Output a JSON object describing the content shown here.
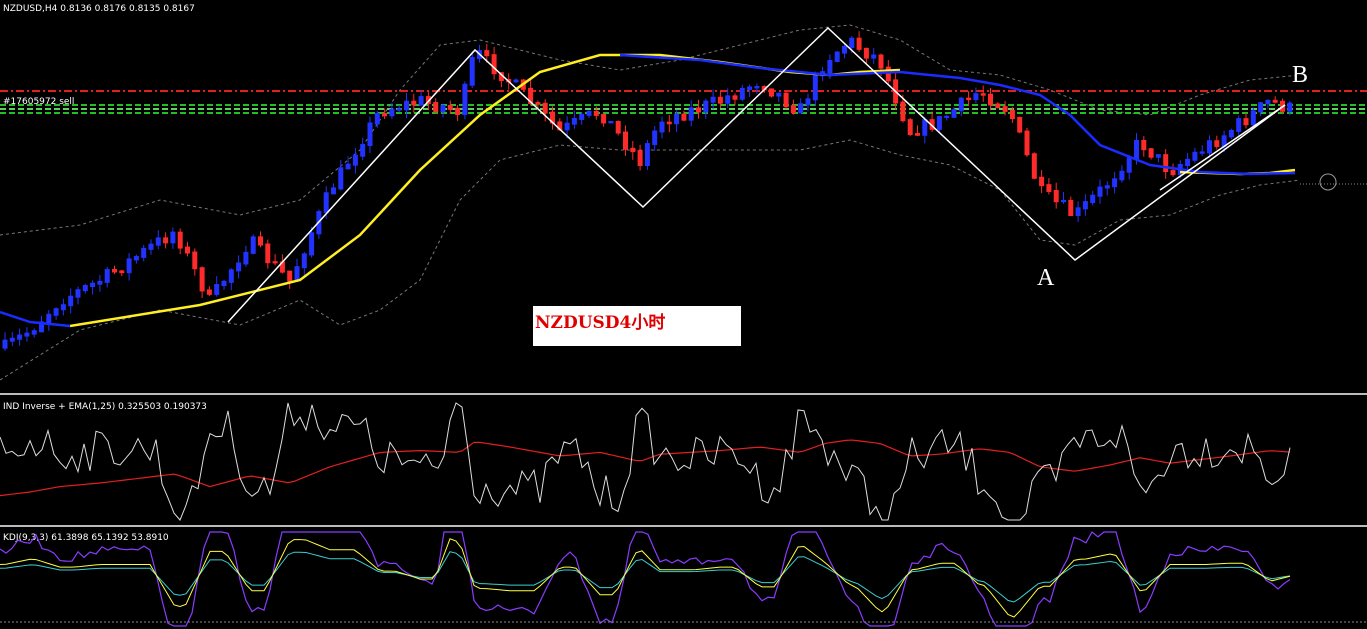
{
  "header": {
    "symbol_line": "NZDUSD,H4  0.8136 0.8176 0.8135 0.8167",
    "order_label": "#17605972 sell"
  },
  "annotations": {
    "box_label": "NZDUSD4小时",
    "point_a": "A",
    "point_b": "B"
  },
  "panels": [
    {
      "title": "IND Inverse + EMA(1,25) 0.325503 0.190373"
    },
    {
      "title": "KDJ(9,3,3) 61.3898 65.1392 53.8910"
    }
  ]
}
